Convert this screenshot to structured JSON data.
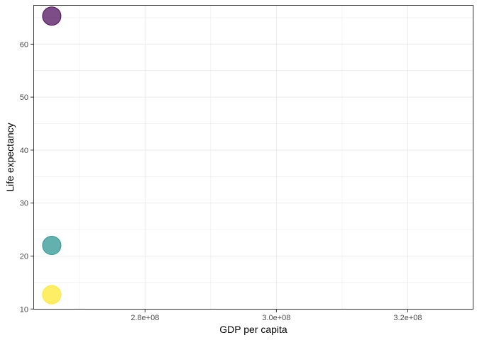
{
  "chart_data": {
    "type": "scatter",
    "title": "",
    "xlabel": "GDP per capita",
    "ylabel": "Life expectancy",
    "xlim": [
      263000000,
      330000000
    ],
    "ylim": [
      9.9,
      67.4
    ],
    "x_ticks": [
      280000000,
      300000000,
      320000000
    ],
    "x_tick_labels": [
      "2.8e+08",
      "3.0e+08",
      "3.2e+08"
    ],
    "y_ticks": [
      10,
      20,
      30,
      40,
      50,
      60
    ],
    "y_tick_labels": [
      "10",
      "20",
      "30",
      "40",
      "50",
      "60"
    ],
    "grid": true,
    "legend": "none",
    "points": [
      {
        "x": 265800000,
        "y": 65.3,
        "color": "#440154"
      },
      {
        "x": 265800000,
        "y": 22.0,
        "color": "#21908C"
      },
      {
        "x": 265800000,
        "y": 12.7,
        "color": "#FDE725"
      }
    ],
    "point_opacity": 0.7
  }
}
